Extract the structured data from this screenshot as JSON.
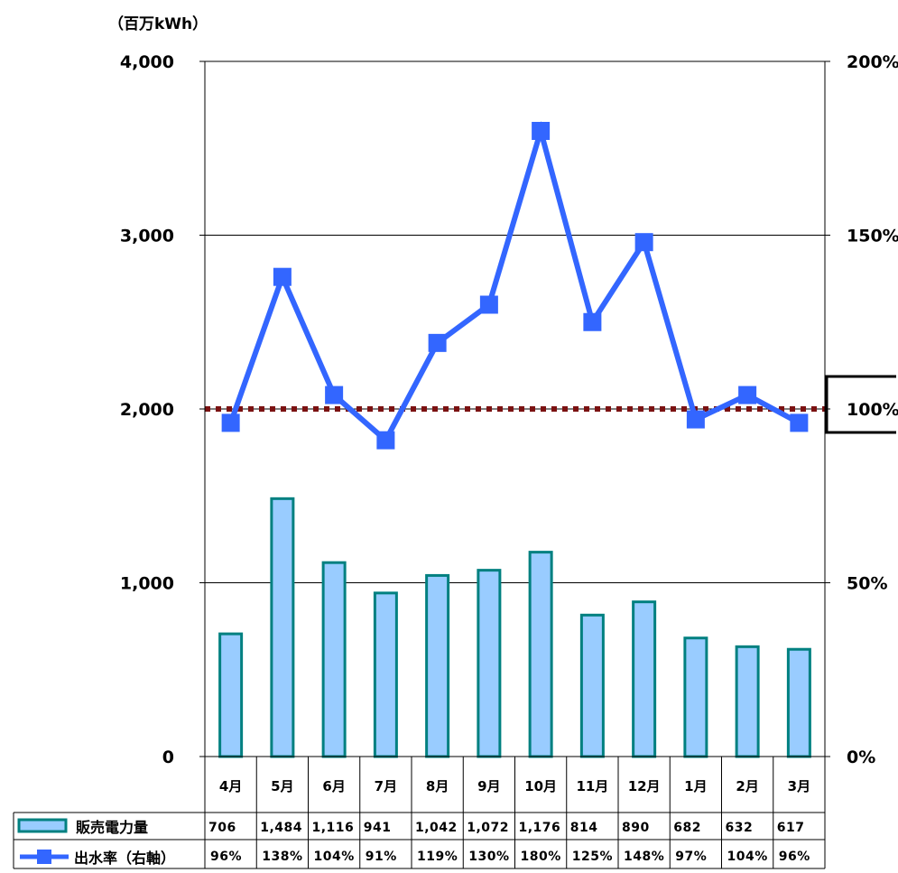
{
  "chart_data": {
    "type": "bar+line",
    "y_unit_label": "（百万kWh）",
    "categories": [
      "4月",
      "5月",
      "6月",
      "7月",
      "8月",
      "9月",
      "10月",
      "11月",
      "12月",
      "1月",
      "2月",
      "3月"
    ],
    "y_left": {
      "min": 0,
      "max": 4000,
      "ticks": [
        0,
        1000,
        2000,
        3000,
        4000
      ],
      "tick_labels": [
        "0",
        "1,000",
        "2,000",
        "3,000",
        "4,000"
      ]
    },
    "y_right": {
      "min": 0,
      "max": 200,
      "ticks": [
        0,
        50,
        100,
        150,
        200
      ],
      "tick_labels": [
        "0%",
        "50%",
        "100%",
        "150%",
        "200%"
      ]
    },
    "reference_line": {
      "axis": "right",
      "value": 100,
      "color": "#7b1111"
    },
    "highlighted_tick": "100%",
    "series": [
      {
        "name": "販売電力量",
        "type": "bar",
        "axis": "left",
        "fill": "#99ccff",
        "stroke": "#008080",
        "values": [
          706,
          1484,
          1116,
          941,
          1042,
          1072,
          1176,
          814,
          890,
          682,
          632,
          617
        ],
        "table_labels": [
          "706",
          "1,484",
          "1,116",
          "941",
          "1,042",
          "1,072",
          "1,176",
          "814",
          "890",
          "682",
          "632",
          "617"
        ]
      },
      {
        "name": "出水率（右軸）",
        "type": "line",
        "axis": "right",
        "color": "#3366ff",
        "values": [
          96,
          138,
          104,
          91,
          119,
          130,
          180,
          125,
          148,
          97,
          104,
          96
        ],
        "table_labels": [
          "96%",
          "138%",
          "104%",
          "91%",
          "119%",
          "130%",
          "180%",
          "125%",
          "148%",
          "97%",
          "104%",
          "96%"
        ]
      }
    ]
  }
}
